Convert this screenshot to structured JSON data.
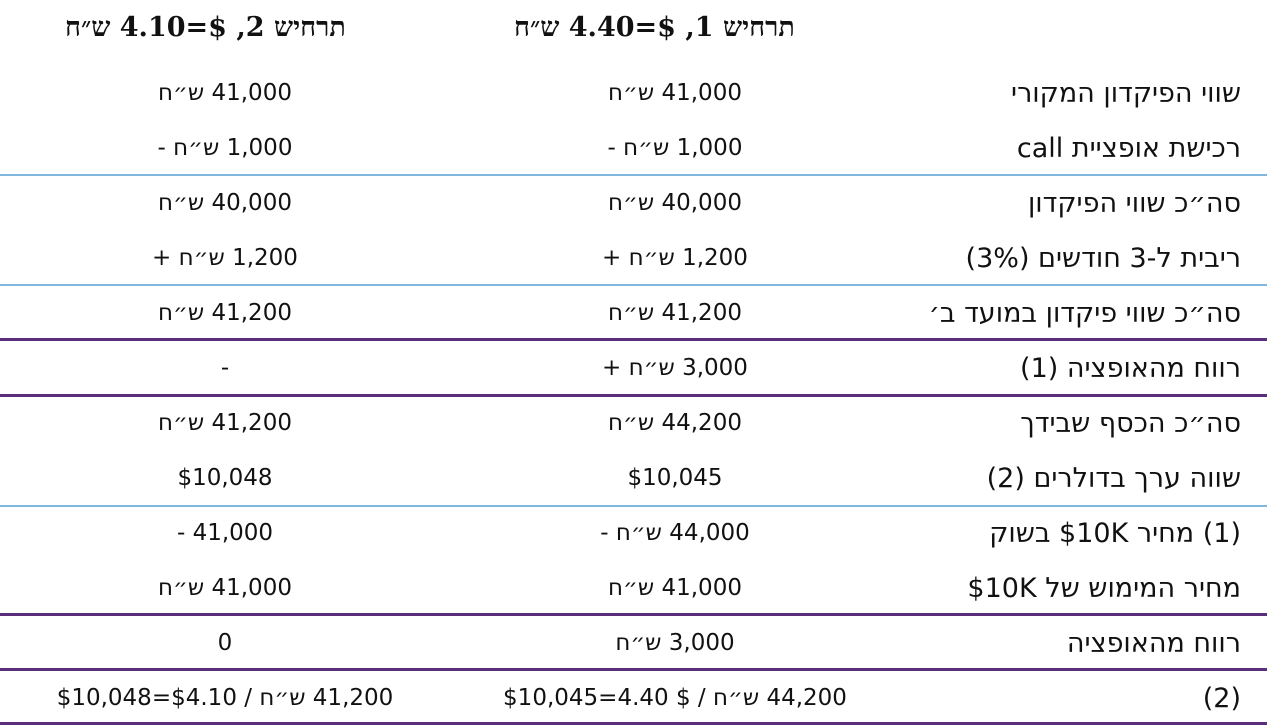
{
  "header": {
    "scenario1": "תרחיש 1, $=4.40 ש״ח",
    "scenario2": "תרחיש 2, $=4.10 ש״ח"
  },
  "rows": [
    {
      "label": "שווי הפיקדון המקורי",
      "v1": "41,000 ש״ח",
      "v2": "41,000 ש״ח"
    },
    {
      "label": "רכישת אופציית call",
      "v1": "1,000 ש״ח -",
      "v2": "1,000 ש״ח -"
    },
    {
      "label": "סה״כ שווי הפיקדון",
      "v1": "40,000 ש״ח",
      "v2": "40,000 ש״ח"
    },
    {
      "label": "ריבית ל-3 חודשים (3%)",
      "v1": "1,200 ש״ח +",
      "v2": "1,200 ש״ח +"
    },
    {
      "label": "סה״כ שווי פיקדון במועד ב׳",
      "v1": "41,200 ש״ח",
      "v2": "41,200 ש״ח"
    },
    {
      "label": "רווח מהאופציה (1)",
      "v1": "3,000 ש״ח +",
      "v2": "-"
    },
    {
      "label": "סה״כ הכסף שבידך",
      "v1": "44,200 ש״ח",
      "v2": "41,200 ש״ח"
    },
    {
      "label": "שווה ערך בדולרים (2)",
      "v1": "$10,045",
      "v2": "$10,048"
    },
    {
      "label": "(1) מחיר $10K בשוק",
      "v1": "44,000 ש״ח -",
      "v2": "- 41,000"
    },
    {
      "label": "מחיר המימוש של $10K",
      "v1": "41,000 ש״ח",
      "v2": "41,000 ש״ח"
    },
    {
      "label": "רווח מהאופציה",
      "v1": "3,000 ש״ח",
      "v2": "0"
    },
    {
      "label": "(2)",
      "v1": "44,200 ש״ח / $ 4.40=$10,045",
      "v2": "41,200 ש״ח / $4.10=$10,048"
    }
  ]
}
